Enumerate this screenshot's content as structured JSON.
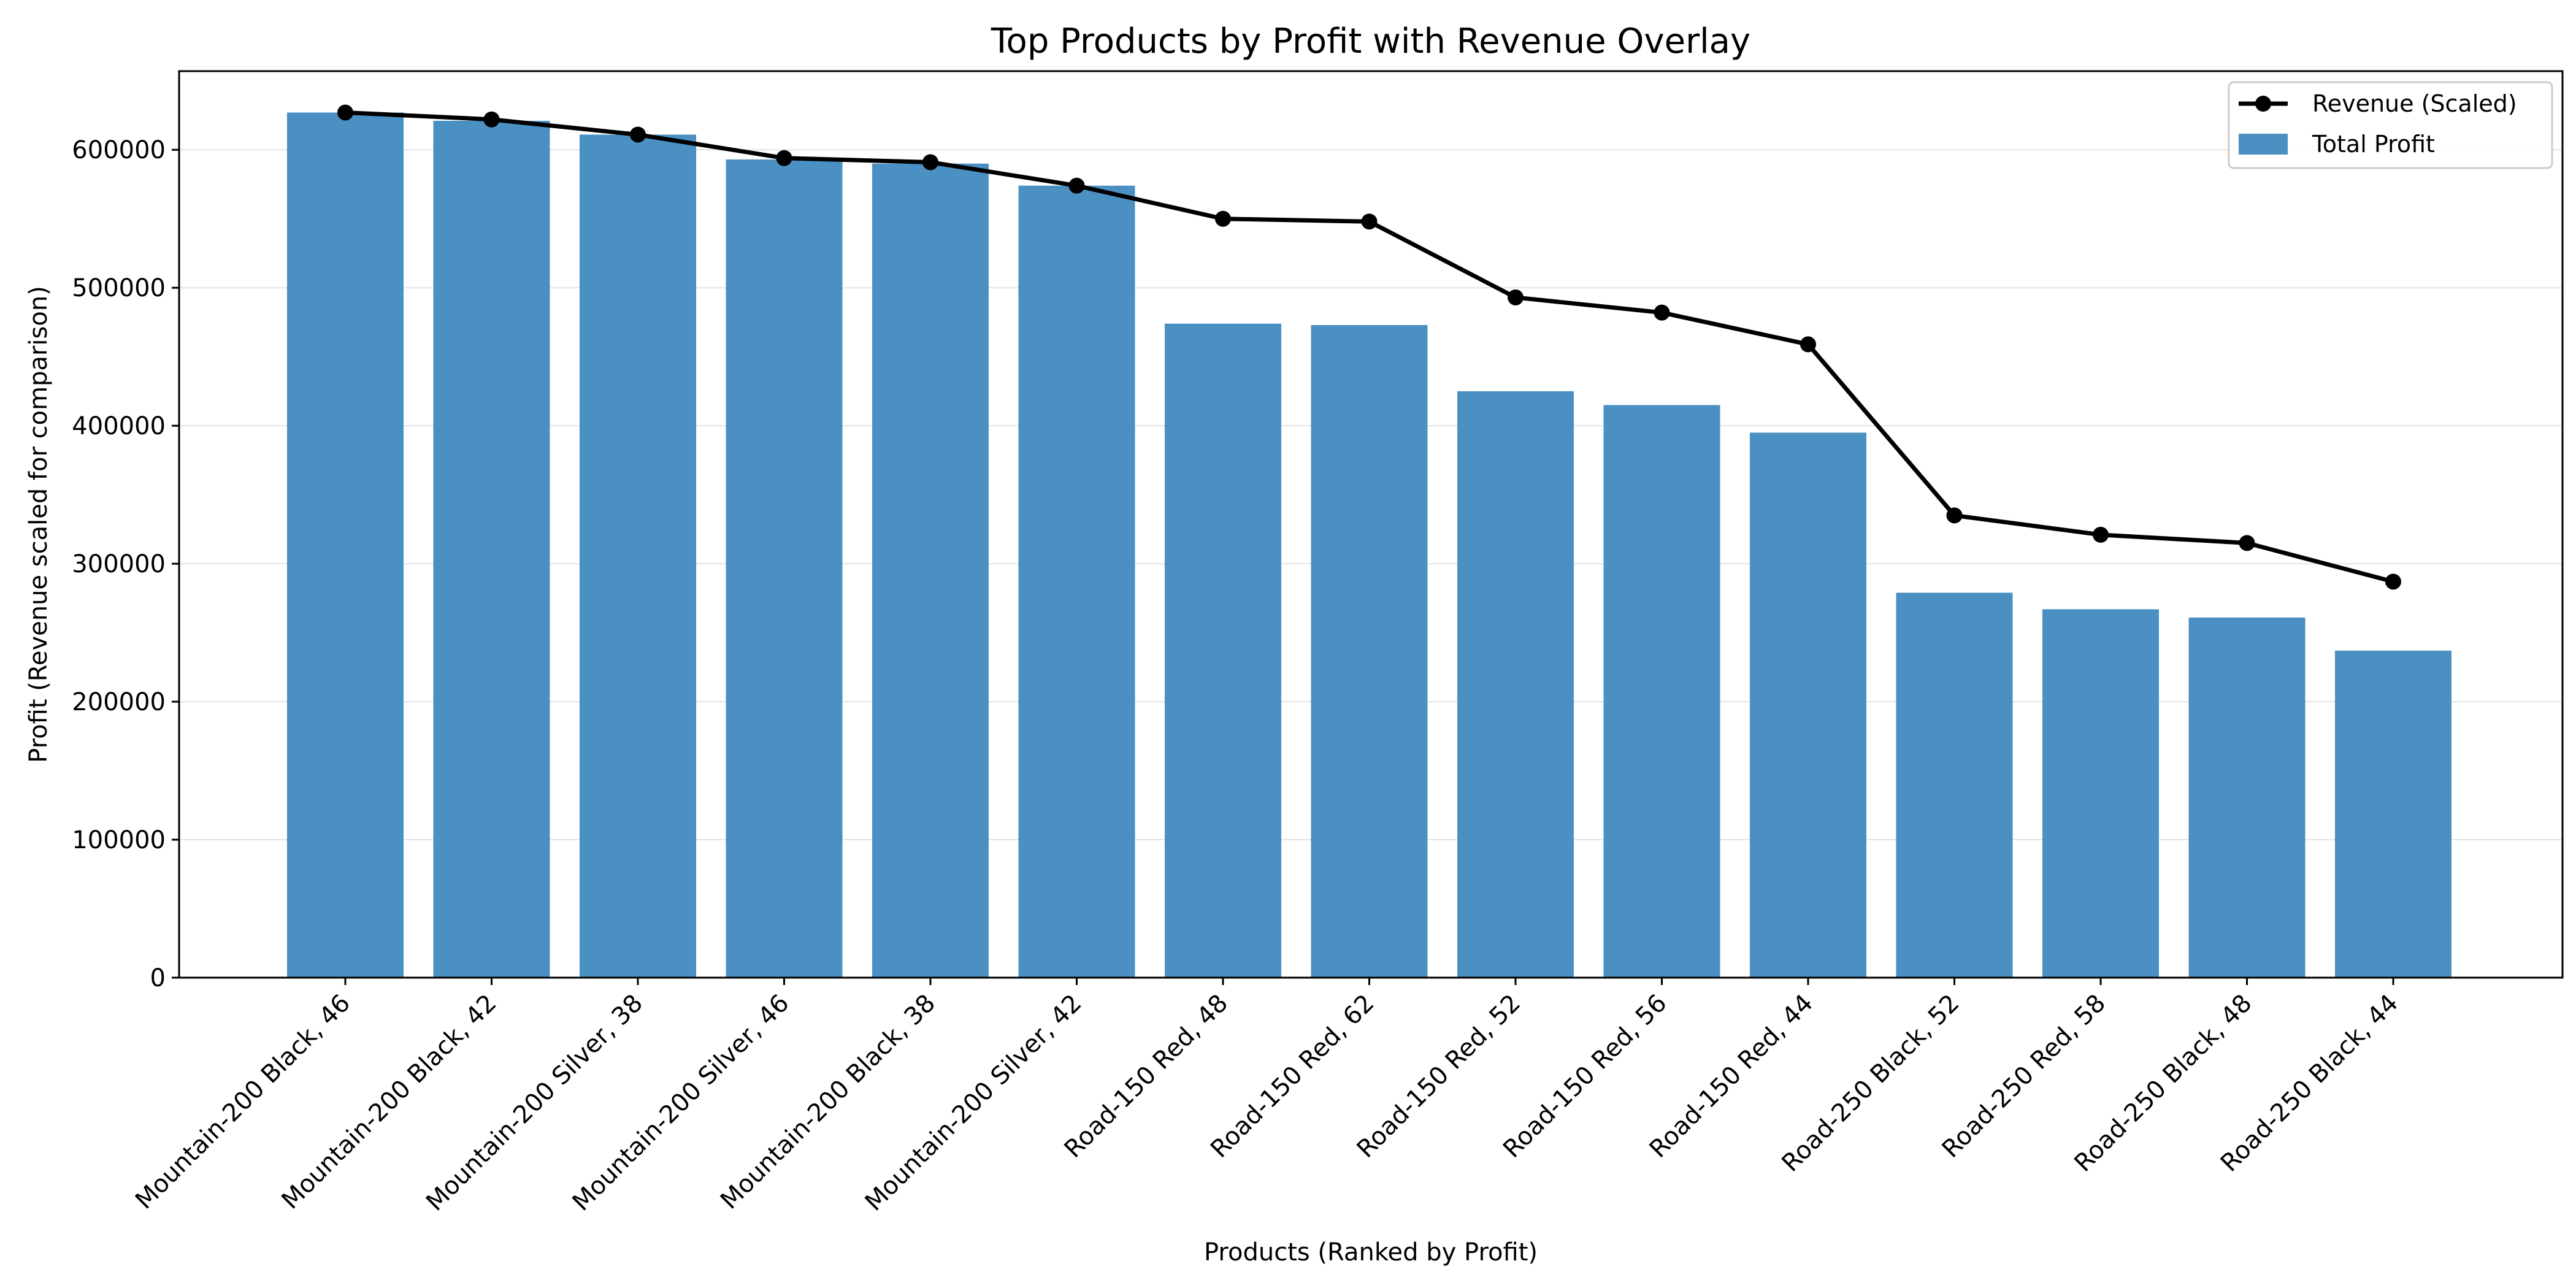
{
  "chart_data": {
    "type": "bar",
    "title": "Top Products by Profit with Revenue Overlay",
    "xlabel": "Products (Ranked by Profit)",
    "ylabel": "Profit (Revenue scaled for comparison)",
    "ylim": [
      0,
      657000
    ],
    "yticks": [
      0,
      100000,
      200000,
      300000,
      400000,
      500000,
      600000
    ],
    "grid": "y",
    "legend_position": "top-right",
    "categories": [
      "Mountain-200 Black, 46",
      "Mountain-200 Black, 42",
      "Mountain-200 Silver, 38",
      "Mountain-200 Silver, 46",
      "Mountain-200 Black, 38",
      "Mountain-200 Silver, 42",
      "Road-150 Red, 48",
      "Road-150 Red, 62",
      "Road-150 Red, 52",
      "Road-150 Red, 56",
      "Road-150 Red, 44",
      "Road-250 Black, 52",
      "Road-250 Red, 58",
      "Road-250 Black, 48",
      "Road-250 Black, 44"
    ],
    "series": [
      {
        "name": "Total Profit",
        "type": "bar",
        "color": "#4a90c2",
        "values": [
          627000,
          621000,
          611000,
          593000,
          590000,
          574000,
          474000,
          473000,
          425000,
          415000,
          395000,
          279000,
          267000,
          261000,
          237000
        ]
      },
      {
        "name": "Revenue (Scaled)",
        "type": "line",
        "color": "#000000",
        "values": [
          627000,
          622000,
          611000,
          594000,
          591000,
          574000,
          550000,
          548000,
          493000,
          482000,
          459000,
          335000,
          321000,
          315000,
          287000
        ]
      }
    ]
  }
}
